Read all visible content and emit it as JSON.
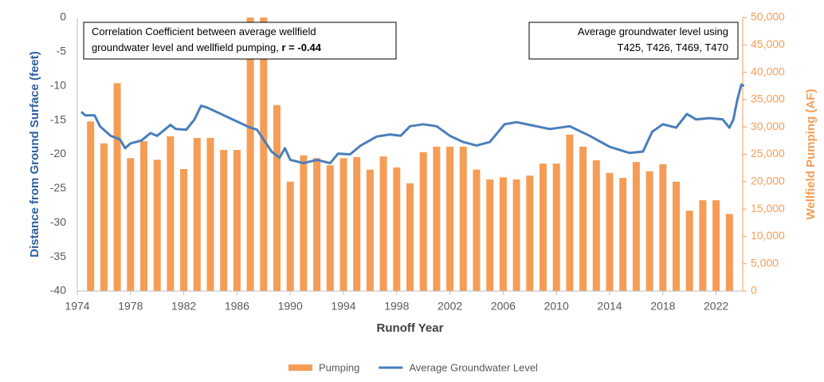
{
  "chart_data": {
    "type": "bar-line",
    "x_label": "Runoff Year",
    "y_label": "Distance from Ground Surface (feet)",
    "y2_label": "Wellfield Pumping (AF)",
    "xlim": [
      1974,
      2024
    ],
    "xticks": [
      1974,
      1978,
      1982,
      1986,
      1990,
      1994,
      1998,
      2002,
      2006,
      2010,
      2014,
      2018,
      2022
    ],
    "ylim": [
      -40,
      0
    ],
    "yticks": [
      -40,
      -35,
      -30,
      -25,
      -20,
      -15,
      -10,
      -5,
      0
    ],
    "y2lim": [
      0,
      50000
    ],
    "y2ticks": [
      0,
      {
        "value": 5000,
        "label": "5,000"
      },
      {
        "value": 10000,
        "label": "10,000"
      },
      {
        "value": 15000,
        "label": "15,000"
      },
      {
        "value": 20000,
        "label": "20,000"
      },
      {
        "value": 25000,
        "label": "25,000"
      },
      {
        "value": 30000,
        "label": "30,000"
      },
      {
        "value": 35000,
        "label": "35,000"
      },
      {
        "value": 40000,
        "label": "40,000"
      },
      {
        "value": 45000,
        "label": "45,000"
      },
      {
        "value": 50000,
        "label": "50,000"
      }
    ],
    "annotations": [
      {
        "lines": [
          "Correlation Coefficient between average wellfield",
          "groundwater level and wellfield pumping, "
        ],
        "bold": "r = -0.44"
      },
      {
        "lines": [
          "Average groundwater level using",
          "T425, T426, T469, T470"
        ]
      }
    ],
    "series": [
      {
        "name": "Pumping",
        "type": "bar",
        "axis": "y2",
        "color": "#f59d56",
        "x": [
          1975,
          1976,
          1977,
          1978,
          1979,
          1980,
          1981,
          1982,
          1983,
          1984,
          1985,
          1986,
          1987,
          1988,
          1989,
          1990,
          1991,
          1992,
          1993,
          1994,
          1995,
          1996,
          1997,
          1998,
          1999,
          2000,
          2001,
          2002,
          2003,
          2004,
          2005,
          2006,
          2007,
          2008,
          2009,
          2010,
          2011,
          2012,
          2013,
          2014,
          2015,
          2016,
          2017,
          2018,
          2019,
          2020,
          2021,
          2022,
          2023
        ],
        "values": [
          31000,
          27000,
          38000,
          24300,
          27400,
          24000,
          28300,
          22300,
          28000,
          28000,
          25800,
          25800,
          50000,
          50000,
          34000,
          20000,
          24800,
          24300,
          23000,
          24300,
          24500,
          22200,
          24600,
          22600,
          19700,
          25400,
          26400,
          26400,
          26400,
          22200,
          20400,
          20800,
          20400,
          21100,
          23300,
          23300,
          28600,
          26400,
          23900,
          21600,
          20700,
          23600,
          21900,
          23200,
          20000,
          14700,
          16600,
          16600,
          14100
        ]
      },
      {
        "name": "Average Groundwater Level",
        "type": "line",
        "color": "#4a7ebb",
        "x": [
          1974.3,
          1974.6,
          1975.3,
          1975.7,
          1976.5,
          1977.2,
          1977.6,
          1978,
          1978.8,
          1979.5,
          1980,
          1981,
          1981.4,
          1982.2,
          1982.8,
          1983.3,
          1983.8,
          1987,
          1987.5,
          1988.6,
          1989.2,
          1989.6,
          1990,
          1991,
          1992,
          1993,
          1993.6,
          1994.5,
          1995.3,
          1996.5,
          1997.5,
          1998.3,
          1999,
          2000,
          2001,
          2002,
          2003,
          2004,
          2005,
          2006.1,
          2007,
          2008,
          2009.5,
          2011,
          2012.5,
          2014,
          2015.5,
          2016.5,
          2017.2,
          2018,
          2019,
          2019.8,
          2020.5,
          2021.5,
          2022.5,
          2023,
          2023.3,
          2023.6,
          2023.9,
          2024.1
        ],
        "values": [
          -13.8,
          -14.3,
          -14.3,
          -15.9,
          -17.3,
          -17.8,
          -19.1,
          -18.4,
          -18.0,
          -16.9,
          -17.3,
          -15.7,
          -16.3,
          -16.4,
          -14.9,
          -12.9,
          -13.2,
          -16.1,
          -16.4,
          -19.6,
          -20.5,
          -19.1,
          -20.8,
          -21.3,
          -20.8,
          -21.3,
          -19.9,
          -20.0,
          -18.7,
          -17.4,
          -17.1,
          -17.3,
          -15.9,
          -15.6,
          -15.9,
          -17.3,
          -18.2,
          -18.7,
          -18.2,
          -15.6,
          -15.3,
          -15.7,
          -16.3,
          -15.9,
          -17.3,
          -18.9,
          -19.8,
          -19.6,
          -16.7,
          -15.6,
          -16.1,
          -14.1,
          -14.9,
          -14.7,
          -14.9,
          -16.1,
          -14.9,
          -12.0,
          -9.8,
          -10.0
        ]
      }
    ]
  }
}
